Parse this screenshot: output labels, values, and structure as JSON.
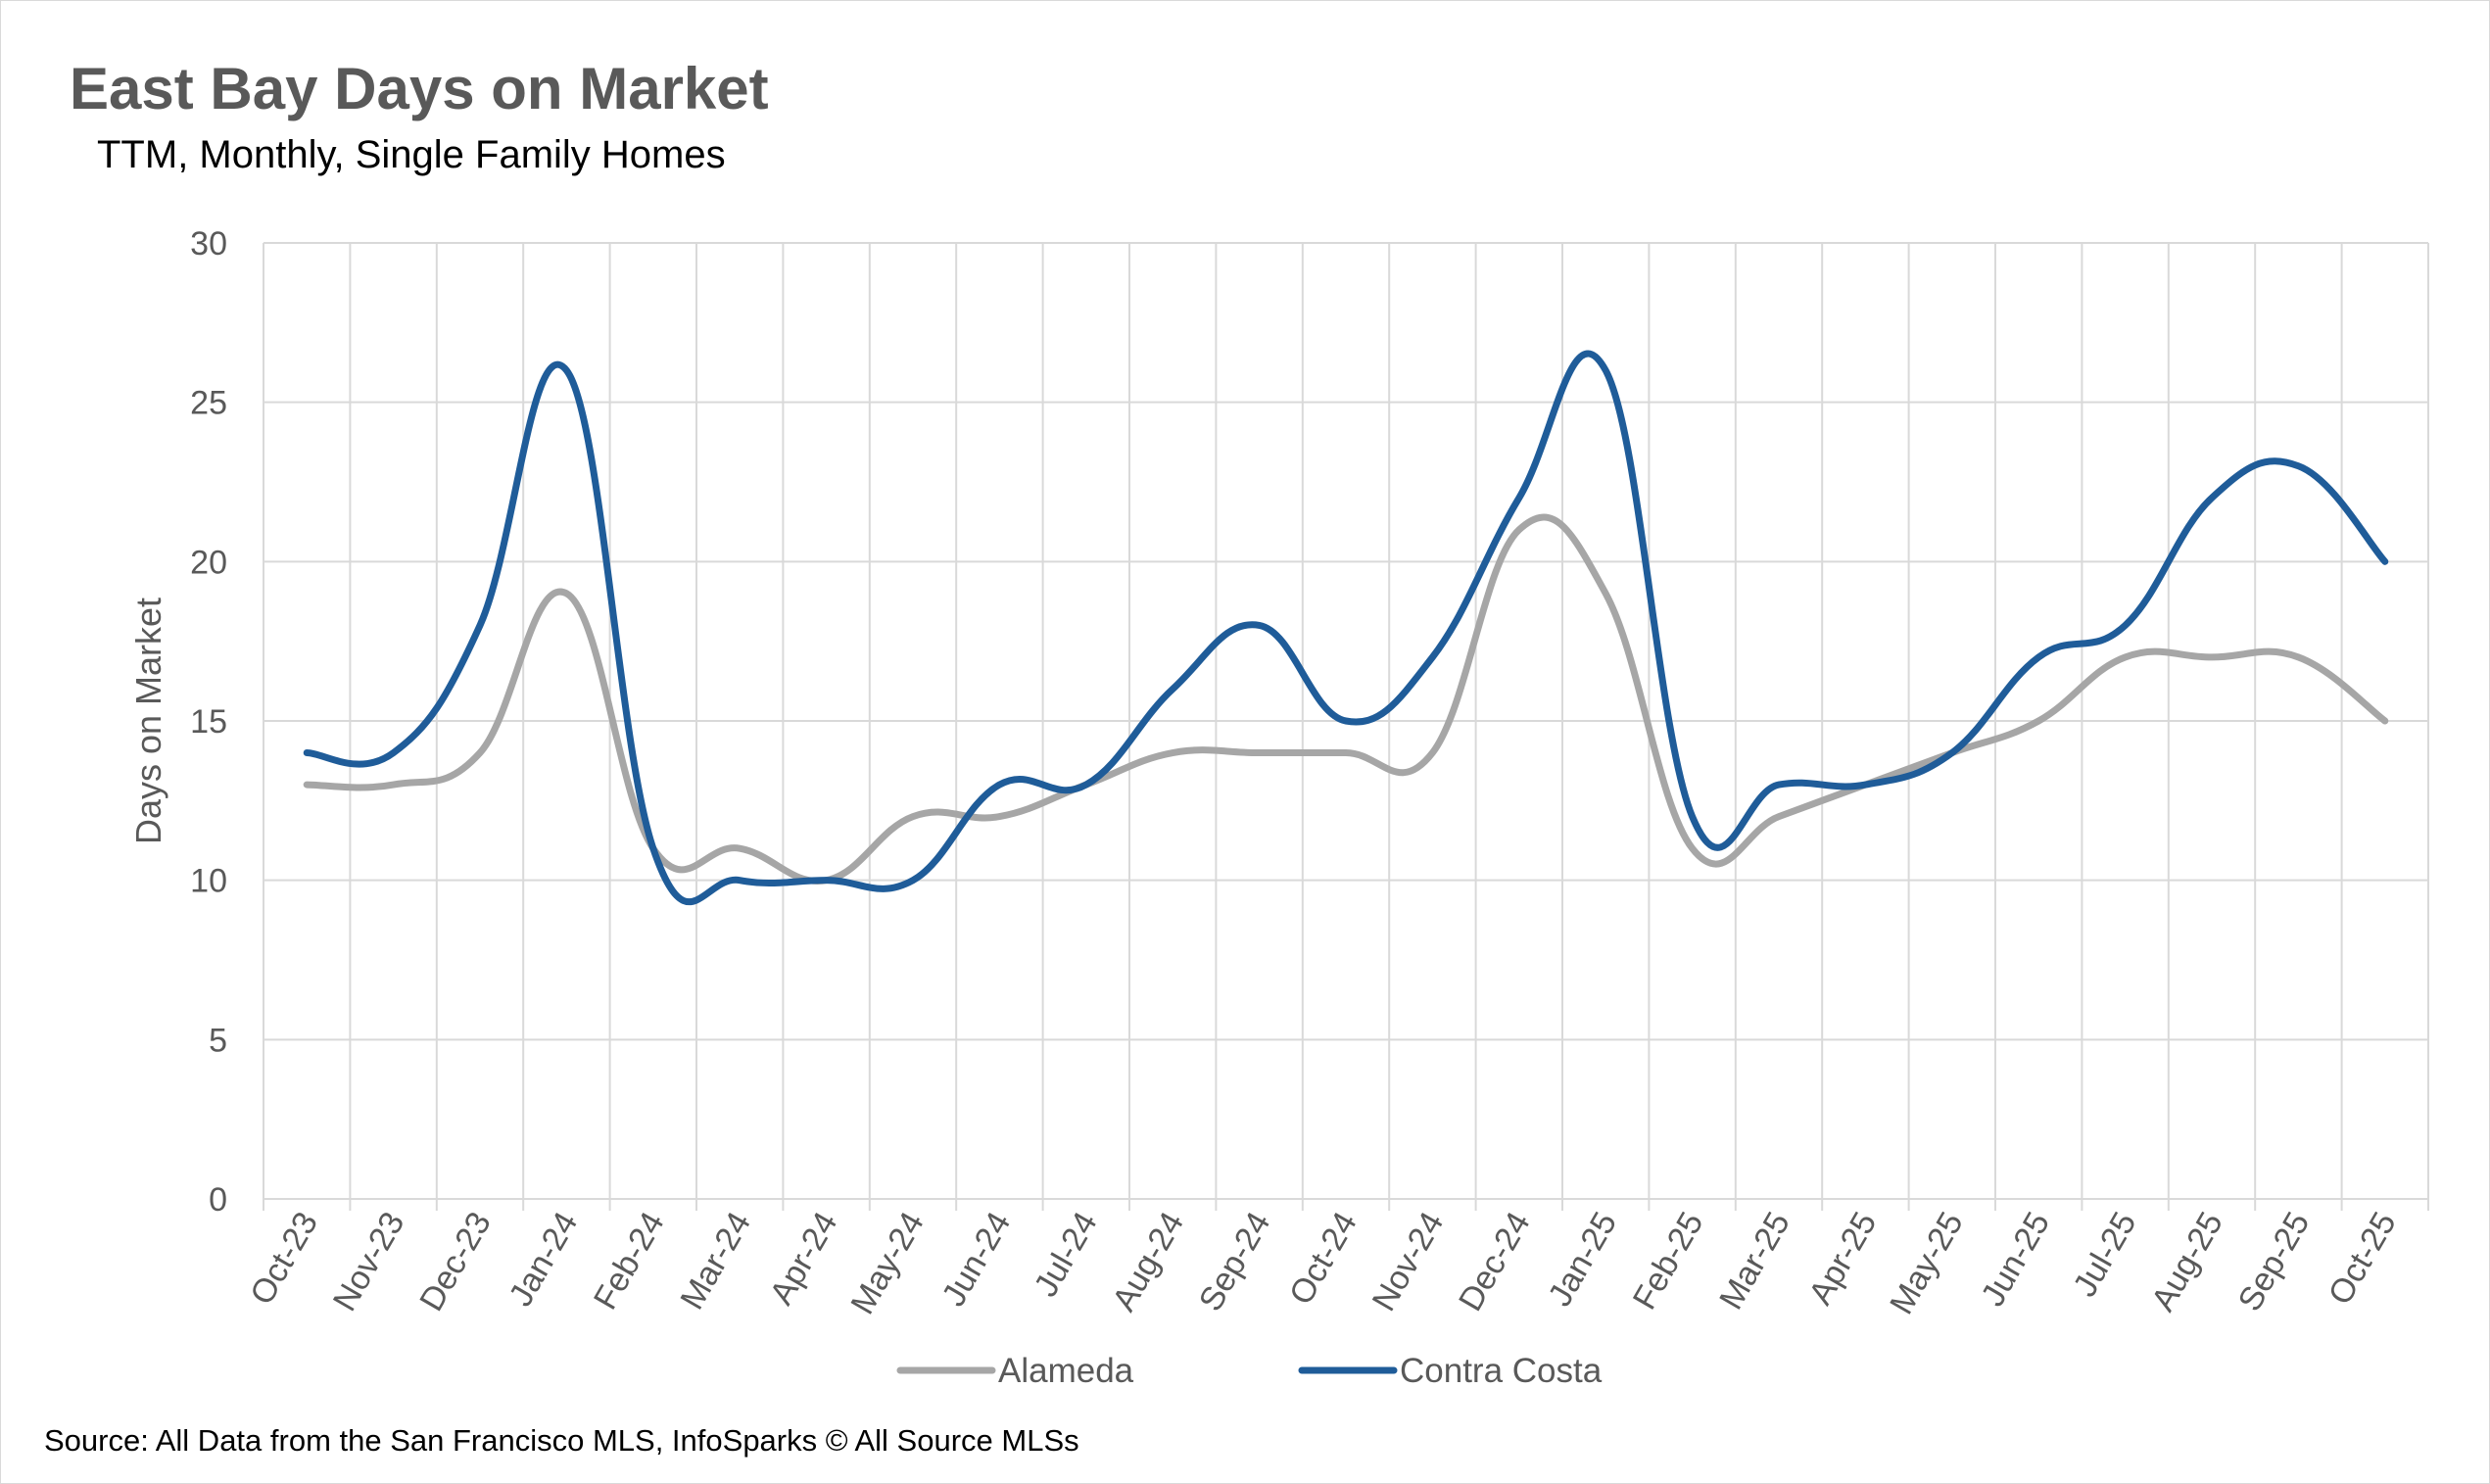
{
  "chart_data": {
    "type": "line",
    "title": "East Bay Days on Market",
    "subtitle": "TTM, Monthly, Single Family Homes",
    "ylabel": "Days on Market",
    "xlabel": "",
    "ylim": [
      0,
      30
    ],
    "yticks": [
      "0",
      "5",
      "10",
      "15",
      "20",
      "25",
      "30"
    ],
    "grid": true,
    "legend_position": "bottom",
    "categories": [
      "Oct-23",
      "Nov-23",
      "Dec-23",
      "Jan-24",
      "Feb-24",
      "Mar-24",
      "Apr-24",
      "May-24",
      "Jun-24",
      "Jul-24",
      "Aug-24",
      "Sep-24",
      "Oct-24",
      "Nov-24",
      "Dec-24",
      "Jan-25",
      "Feb-25",
      "Mar-25",
      "Apr-25",
      "May-25",
      "Jun-25",
      "Jul-25",
      "Aug-25",
      "Sep-25",
      "Oct-25"
    ],
    "series": [
      {
        "name": "Alameda",
        "color": "#A6A6A6",
        "values": [
          13,
          13,
          14,
          19,
          11,
          11,
          10,
          12,
          12,
          13,
          14,
          14,
          14,
          14,
          21,
          19,
          11,
          12,
          13,
          14,
          15,
          17,
          17,
          17,
          15
        ]
      },
      {
        "name": "Contra Costa",
        "color": "#1F5C99",
        "values": [
          14,
          14,
          18,
          26,
          11,
          10,
          10,
          10,
          13,
          13,
          16,
          18,
          15,
          17,
          22,
          26,
          12,
          13,
          13,
          14,
          17,
          18,
          22,
          23,
          20
        ]
      }
    ],
    "source": "Source: All Data from the San Francisco MLS, InfoSparks © All Source MLSs"
  },
  "colors": {
    "gridline": "#D9D9D9",
    "title": "#595959",
    "tick_text": "#595959"
  }
}
